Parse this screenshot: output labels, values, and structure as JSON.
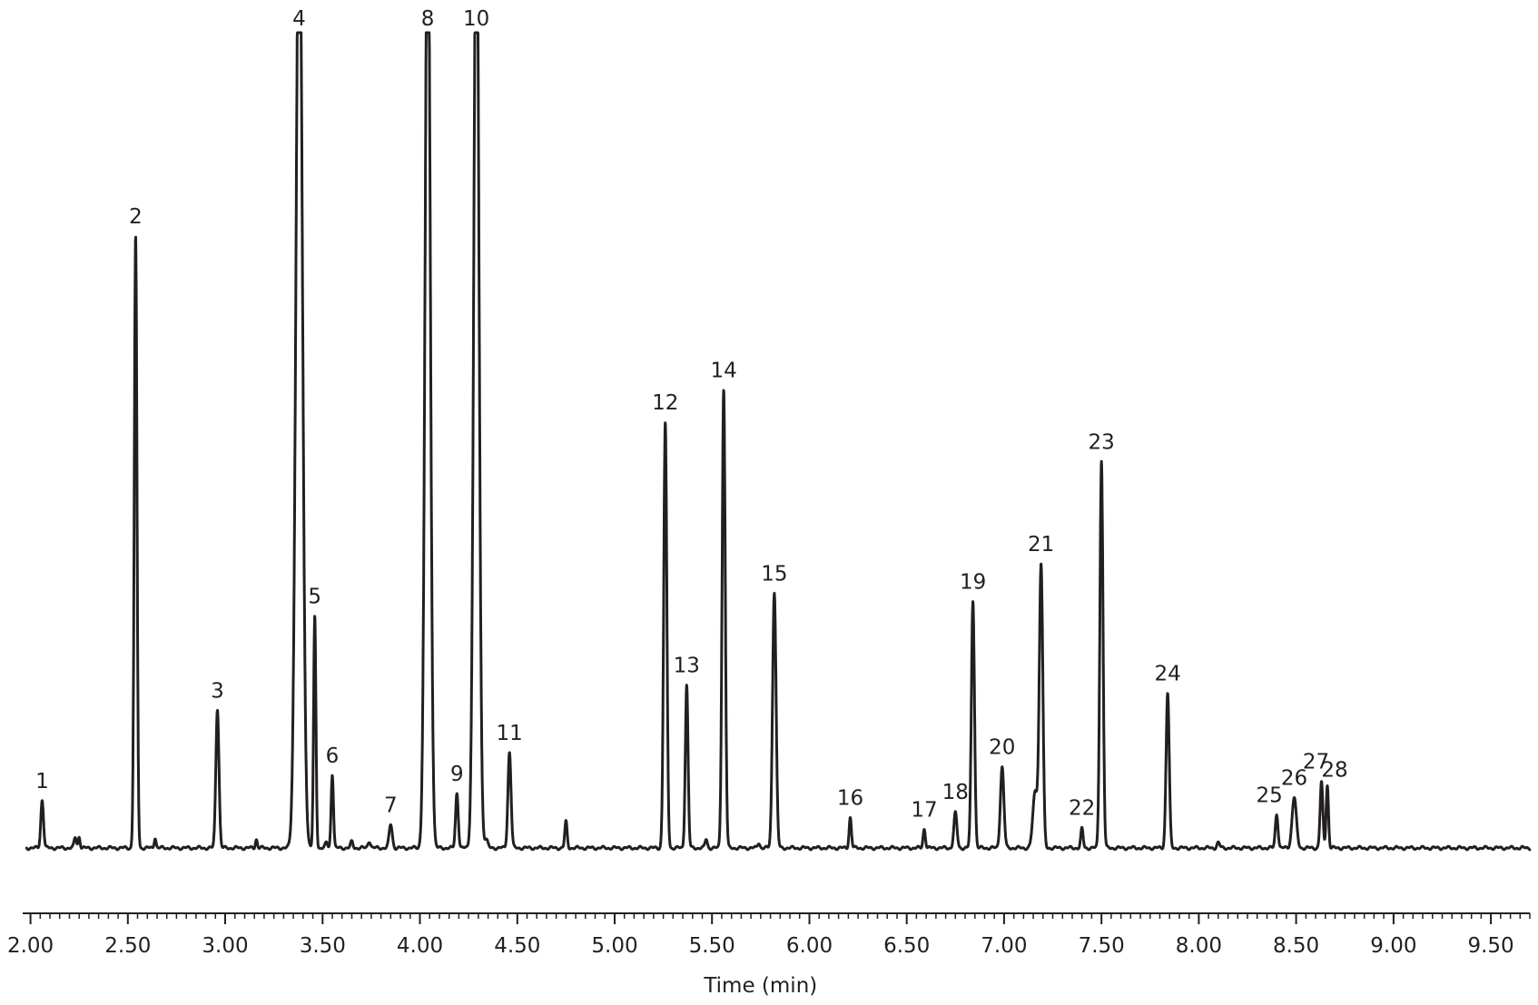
{
  "chart_data": {
    "type": "line",
    "xlabel": "Time (min)",
    "ylabel": "",
    "xlim": [
      1.96,
      9.7
    ],
    "ylim": [
      0,
      100
    ],
    "x_ticks": [
      "2.00",
      "2.50",
      "3.00",
      "3.50",
      "4.00",
      "4.50",
      "5.00",
      "5.50",
      "6.00",
      "6.50",
      "7.00",
      "7.50",
      "8.00",
      "8.50",
      "9.00",
      "9.50"
    ],
    "x_tick_values": [
      2.0,
      2.5,
      3.0,
      3.5,
      4.0,
      4.5,
      5.0,
      5.5,
      6.0,
      6.5,
      7.0,
      7.5,
      8.0,
      8.5,
      9.0,
      9.5
    ],
    "grid": false,
    "peaks": [
      {
        "label": "1",
        "x": 2.06,
        "y": 5.5,
        "w": 0.007
      },
      {
        "label": "2",
        "x": 2.54,
        "y": 70,
        "w": 0.007
      },
      {
        "label": "3",
        "x": 2.96,
        "y": 16,
        "w": 0.008
      },
      {
        "label": "4",
        "x": 3.38,
        "y": 115,
        "w": 0.016
      },
      {
        "label": "5",
        "x": 3.46,
        "y": 26.5,
        "w": 0.006
      },
      {
        "label": "6",
        "x": 3.55,
        "y": 8.5,
        "w": 0.006
      },
      {
        "label": "7",
        "x": 3.85,
        "y": 2.7,
        "w": 0.008
      },
      {
        "label": "8",
        "x": 4.04,
        "y": 115,
        "w": 0.013
      },
      {
        "label": "9",
        "x": 4.19,
        "y": 6.3,
        "w": 0.007
      },
      {
        "label": "10",
        "x": 4.29,
        "y": 115,
        "w": 0.013
      },
      {
        "label": "11",
        "x": 4.46,
        "y": 11,
        "w": 0.008
      },
      {
        "label": "12",
        "x": 5.26,
        "y": 48.7,
        "w": 0.008
      },
      {
        "label": "13",
        "x": 5.37,
        "y": 18.7,
        "w": 0.007
      },
      {
        "label": "14",
        "x": 5.56,
        "y": 52.6,
        "w": 0.008
      },
      {
        "label": "15",
        "x": 5.82,
        "y": 29.4,
        "w": 0.009
      },
      {
        "label": "16",
        "x": 6.21,
        "y": 3.5,
        "w": 0.006
      },
      {
        "label": "17",
        "x": 6.59,
        "y": 2.2,
        "w": 0.006
      },
      {
        "label": "18",
        "x": 6.75,
        "y": 4,
        "w": 0.008
      },
      {
        "label": "19",
        "x": 6.84,
        "y": 28.4,
        "w": 0.008
      },
      {
        "label": "20",
        "x": 6.99,
        "y": 9.3,
        "w": 0.009
      },
      {
        "label": "21",
        "x": 7.19,
        "y": 32.4,
        "w": 0.009
      },
      {
        "label": "22",
        "x": 7.4,
        "y": 2.2,
        "w": 0.006
      },
      {
        "label": "23",
        "x": 7.5,
        "y": 44.4,
        "w": 0.008
      },
      {
        "label": "24",
        "x": 7.84,
        "y": 17.8,
        "w": 0.008
      },
      {
        "label": "25",
        "x": 8.4,
        "y": 3.9,
        "w": 0.007
      },
      {
        "label": "26",
        "x": 8.49,
        "y": 5.8,
        "w": 0.011
      },
      {
        "label": "27",
        "x": 8.63,
        "y": 7.5,
        "w": 0.007
      },
      {
        "label": "28",
        "x": 8.66,
        "y": 7.2,
        "w": 0.006
      }
    ],
    "unlabeled_peaks": [
      {
        "x": 2.23,
        "y": 1.2,
        "w": 0.006
      },
      {
        "x": 2.25,
        "y": 1.3,
        "w": 0.005
      },
      {
        "x": 2.64,
        "y": 1.2,
        "w": 0.005
      },
      {
        "x": 3.16,
        "y": 1.0,
        "w": 0.005
      },
      {
        "x": 3.52,
        "y": 0.6,
        "w": 0.006
      },
      {
        "x": 3.65,
        "y": 0.7,
        "w": 0.006
      },
      {
        "x": 3.74,
        "y": 0.8,
        "w": 0.007
      },
      {
        "x": 4.34,
        "y": 1.0,
        "w": 0.008
      },
      {
        "x": 4.75,
        "y": 3.0,
        "w": 0.006
      },
      {
        "x": 5.47,
        "y": 1.0,
        "w": 0.006
      },
      {
        "x": 5.74,
        "y": 0.6,
        "w": 0.006
      },
      {
        "x": 7.16,
        "y": 6.5,
        "w": 0.012
      },
      {
        "x": 8.1,
        "y": 0.6,
        "w": 0.007
      }
    ],
    "plot_color": "#231f20"
  }
}
